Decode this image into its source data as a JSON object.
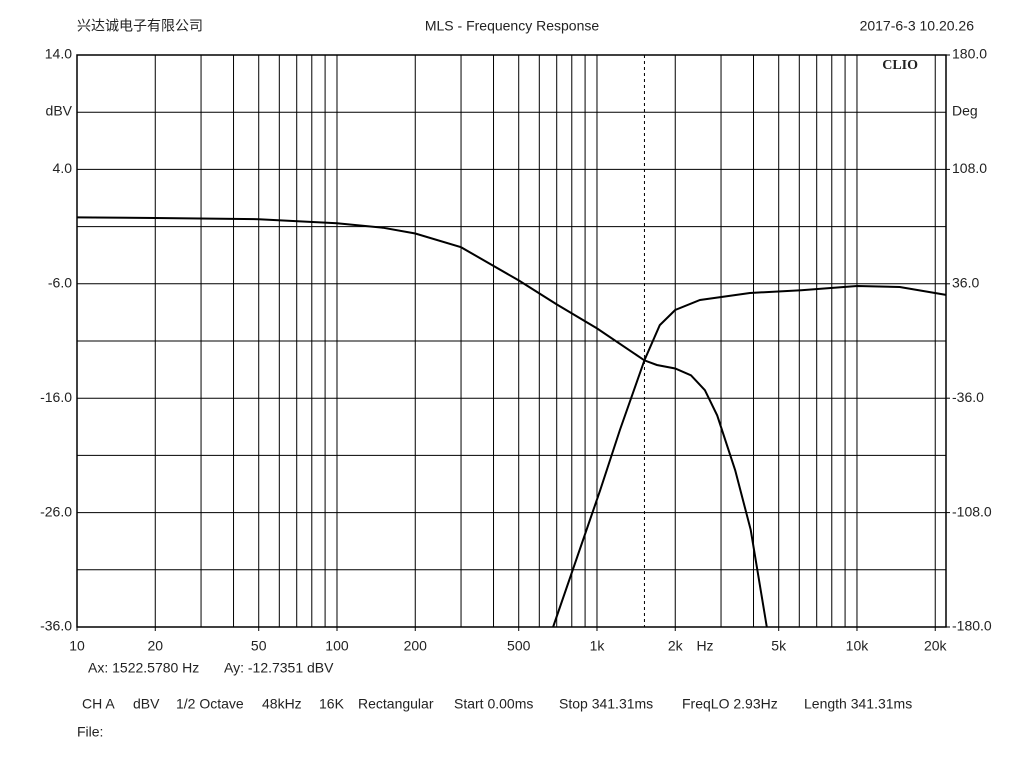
{
  "chart_data": {
    "type": "line",
    "company": "兴达诚电子有限公司",
    "title": "MLS - Frequency Response",
    "timestamp": "2017-6-3 10.20.26",
    "logo": "CLIO",
    "ylabel": "dBV",
    "y2label": "Deg",
    "x_unit": "Hz",
    "xscale": "log",
    "xlim": [
      10,
      22000
    ],
    "xticks": [
      10,
      20,
      50,
      100,
      200,
      500,
      {
        "value": 1000,
        "label": "1k"
      },
      {
        "value": 2000,
        "label": "2k"
      },
      {
        "value": 5000,
        "label": "5k"
      },
      {
        "value": 10000,
        "label": "10k"
      },
      {
        "value": 20000,
        "label": "20k"
      }
    ],
    "xgrid": [
      20,
      30,
      40,
      50,
      60,
      70,
      80,
      90,
      100,
      200,
      300,
      400,
      500,
      600,
      700,
      800,
      900,
      1000,
      2000,
      3000,
      4000,
      5000,
      6000,
      7000,
      8000,
      9000,
      10000,
      20000
    ],
    "ylim": [
      -36,
      14
    ],
    "yticks": [
      {
        "value": 14,
        "label": "14.0"
      },
      {
        "value": 4,
        "label": "4.0"
      },
      {
        "value": -6,
        "label": "-6.0"
      },
      {
        "value": -16,
        "label": "-16.0"
      },
      {
        "value": -26,
        "label": "-26.0"
      },
      {
        "value": -36,
        "label": "-36.0"
      }
    ],
    "ygrid": [
      9,
      -1,
      -11,
      -21,
      -31
    ],
    "y2lim": [
      -180,
      180
    ],
    "y2ticks": [
      {
        "value": 180,
        "label": "180.0"
      },
      {
        "value": 108,
        "label": "108.0"
      },
      {
        "value": 36,
        "label": "36.0"
      },
      {
        "value": -36,
        "label": "-36.0"
      },
      {
        "value": -108,
        "label": "-108.0"
      },
      {
        "value": -180,
        "label": "-180.0"
      }
    ],
    "cursor_x": 1522.578,
    "cursor_readout": [
      "Ax: 1522.5780 Hz",
      "Ay: -12.7351 dBV"
    ],
    "settings": [
      "CH A",
      "dBV",
      "1/2 Octave",
      "48kHz",
      "16K",
      "Rectangular",
      "Start 0.00ms",
      "Stop 341.31ms",
      "FreqLO 2.93Hz",
      "Length 341.31ms"
    ],
    "file_label": "File:",
    "series": [
      {
        "color": "#000000",
        "x": [
          10,
          20,
          50,
          100,
          150,
          200,
          300,
          500,
          700,
          1000,
          1522.578,
          1700,
          2000,
          2300,
          2600,
          2900,
          3400,
          3900,
          4500
        ],
        "values": [
          -0.2,
          -0.25,
          -0.35,
          -0.7,
          -1.1,
          -1.6,
          -2.8,
          -5.7,
          -7.8,
          -9.9,
          -12.7,
          -13.1,
          -13.4,
          -14.0,
          -15.3,
          -17.5,
          -22.3,
          -27.5,
          -36
        ]
      },
      {
        "color": "#000000",
        "axis": "y2",
        "x": [
          678,
          1028,
          1225,
          1522.578,
          1744,
          2000,
          2490,
          3873,
          6100,
          10000,
          14600,
          22000
        ],
        "values": [
          -180,
          -94,
          -56,
          -12,
          10,
          19.5,
          25.8,
          30.2,
          32,
          34.6,
          34,
          29
        ]
      }
    ]
  }
}
